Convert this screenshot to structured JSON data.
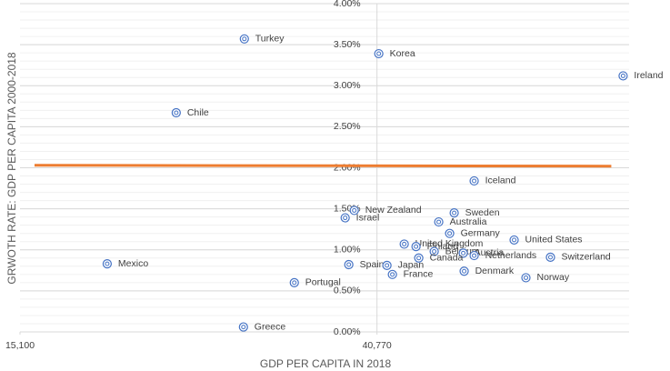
{
  "chart_data": {
    "type": "scatter",
    "x_label": "GDP PER CAPITA IN 2018",
    "y_label": "GRWOTH RATE: GDP PER CAPITA 2000-2018",
    "xlim": [
      15100,
      58900
    ],
    "xticks": [
      {
        "value": 15100,
        "label": "15,100"
      },
      {
        "value": 40770,
        "label": "40,770"
      }
    ],
    "y_axis_crosses": 40770,
    "ylim": [
      0,
      4
    ],
    "yticks": [
      {
        "value": 0,
        "label": "0.00%"
      },
      {
        "value": 0.5,
        "label": "0.50%"
      },
      {
        "value": 1,
        "label": "1.00%"
      },
      {
        "value": 1.5,
        "label": "1.50%"
      },
      {
        "value": 2,
        "label": "2.00%"
      },
      {
        "value": 2.5,
        "label": "2.50%"
      },
      {
        "value": 3,
        "label": "3.00%"
      },
      {
        "value": 3.5,
        "label": "3.50%"
      },
      {
        "value": 4,
        "label": "4.00%"
      }
    ],
    "minor_grid_step": 0.1,
    "color": "#4472c4",
    "point_labels": [
      "Turkey",
      "Korea",
      "Ireland",
      "Chile",
      "Iceland",
      "New Zealand",
      "Israel",
      "Sweden",
      "Australia",
      "Germany",
      "United States",
      "United Kingdom",
      "Finland",
      "Belgium",
      "Austria",
      "Netherlands",
      "Canada",
      "Switzerland",
      "Mexico",
      "Spain",
      "Japan",
      "France",
      "Denmark",
      "Norway",
      "Portugal",
      "Greece"
    ],
    "x": [
      31233,
      40900,
      58470,
      26334,
      47758,
      39137,
      38483,
      46322,
      45211,
      45995,
      50632,
      42729,
      43578,
      44884,
      46975,
      47758,
      43774,
      53245,
      21370,
      38744,
      41487,
      41879,
      47039,
      51481,
      34826,
      31168
    ],
    "values": [
      3.57,
      3.39,
      3.12,
      2.67,
      1.84,
      1.48,
      1.39,
      1.45,
      1.34,
      1.2,
      1.12,
      1.07,
      1.04,
      0.98,
      0.96,
      0.93,
      0.9,
      0.91,
      0.83,
      0.82,
      0.81,
      0.7,
      0.74,
      0.66,
      0.6,
      0.06
    ],
    "trendline": {
      "color": "#ed7d31",
      "x": [
        16145,
        57621
      ],
      "values": [
        2.03,
        2.02
      ]
    }
  }
}
